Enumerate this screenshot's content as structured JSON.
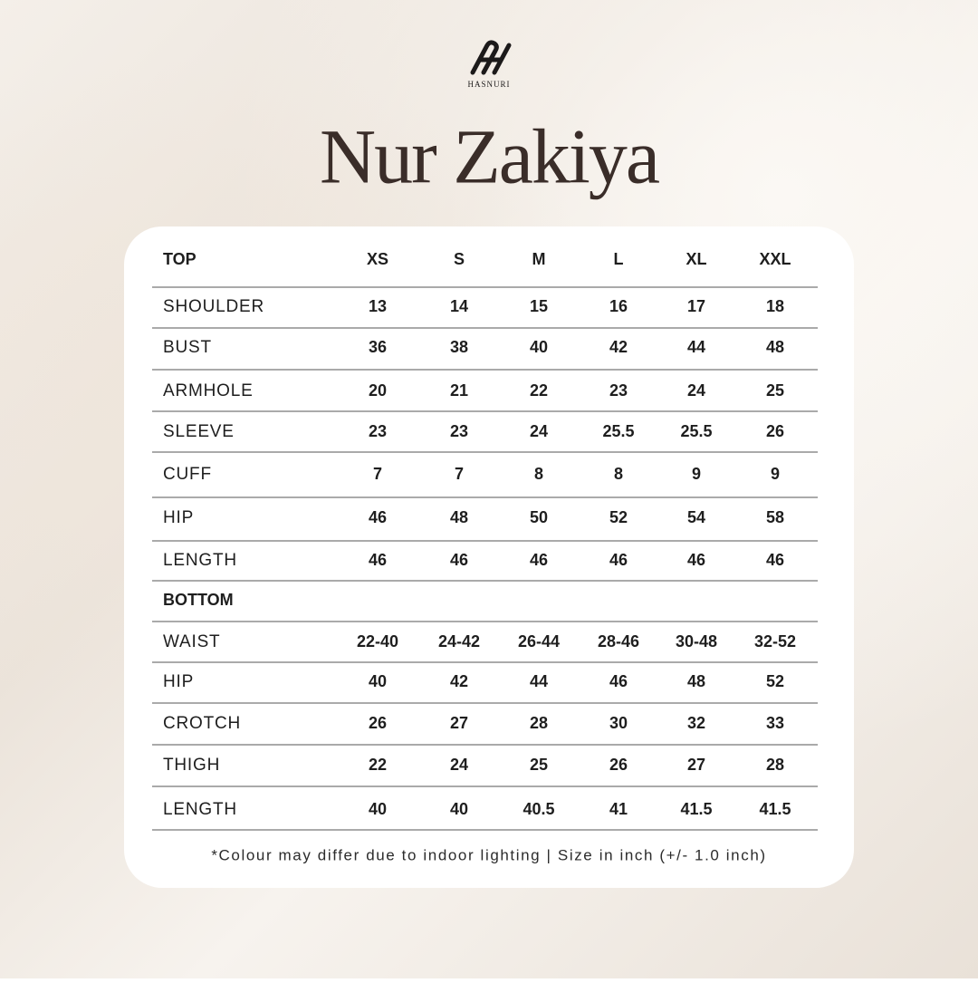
{
  "brand": "HASNURI",
  "title": "Nur Zakiya",
  "table": {
    "header": [
      "TOP",
      "XS",
      "S",
      "M",
      "L",
      "XL",
      "XXL"
    ],
    "top_rows": [
      [
        "SHOULDER",
        "13",
        "14",
        "15",
        "16",
        "17",
        "18"
      ],
      [
        "BUST",
        "36",
        "38",
        "40",
        "42",
        "44",
        "48"
      ],
      [
        "ARMHOLE",
        "20",
        "21",
        "22",
        "23",
        "24",
        "25"
      ],
      [
        "SLEEVE",
        "23",
        "23",
        "24",
        "25.5",
        "25.5",
        "26"
      ],
      [
        "CUFF",
        "7",
        "7",
        "8",
        "8",
        "9",
        "9"
      ],
      [
        "HIP",
        "46",
        "48",
        "50",
        "52",
        "54",
        "58"
      ],
      [
        "LENGTH",
        "46",
        "46",
        "46",
        "46",
        "46",
        "46"
      ]
    ],
    "bottom_label": "BOTTOM",
    "bottom_rows": [
      [
        "WAIST",
        "22-40",
        "24-42",
        "26-44",
        "28-46",
        "30-48",
        "32-52"
      ],
      [
        "HIP",
        "40",
        "42",
        "44",
        "46",
        "48",
        "52"
      ],
      [
        "CROTCH",
        "26",
        "27",
        "28",
        "30",
        "32",
        "33"
      ],
      [
        "THIGH",
        "22",
        "24",
        "25",
        "26",
        "27",
        "28"
      ],
      [
        "LENGTH",
        "40",
        "40",
        "40.5",
        "41",
        "41.5",
        "41.5"
      ]
    ]
  },
  "note": "*Colour may differ due to indoor lighting | Size in inch (+/- 1.0 inch)"
}
